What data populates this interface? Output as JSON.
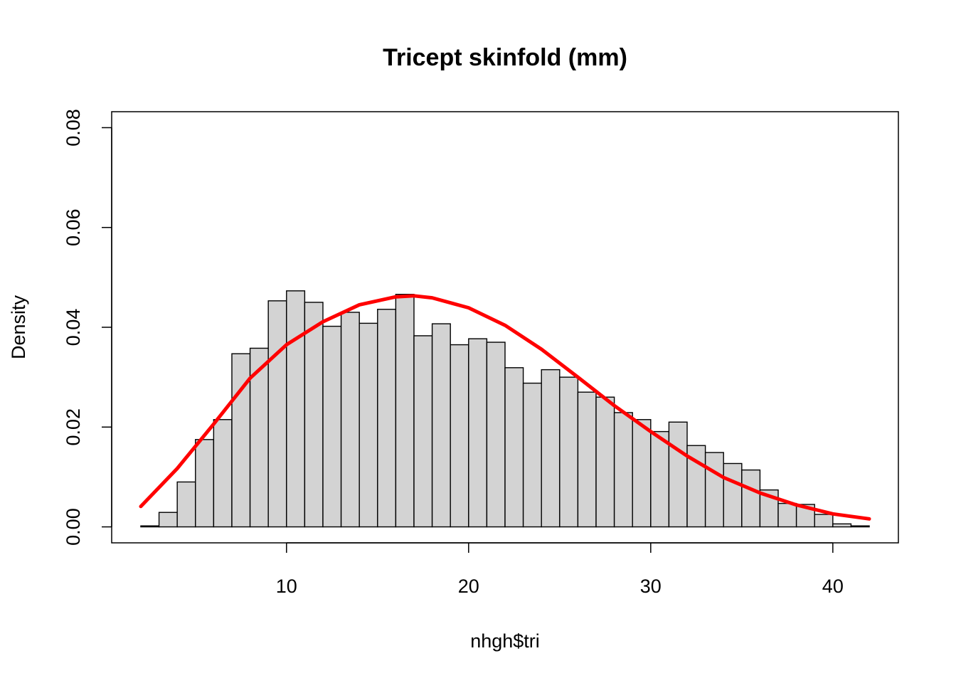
{
  "chart_data": {
    "type": "bar",
    "title": "Tricept skinfold (mm)",
    "xlabel": "nhgh$tri",
    "ylabel": "Density",
    "xlim": [
      0.4,
      43.6
    ],
    "ylim": [
      -0.0032,
      0.0832
    ],
    "x_ticks": [
      10,
      20,
      30,
      40
    ],
    "x_tick_labels": [
      "10",
      "20",
      "30",
      "40"
    ],
    "y_ticks": [
      0,
      0.02,
      0.04,
      0.06,
      0.08
    ],
    "y_tick_labels": [
      "0.00",
      "0.02",
      "0.04",
      "0.06",
      "0.08"
    ],
    "grid": false,
    "legend": "none",
    "bin_edges": [
      2,
      3,
      4,
      5,
      6,
      7,
      8,
      9,
      10,
      11,
      12,
      13,
      14,
      15,
      16,
      17,
      18,
      19,
      20,
      21,
      22,
      23,
      24,
      25,
      26,
      27,
      28,
      29,
      30,
      31,
      32,
      33,
      34,
      35,
      36,
      37,
      38,
      39,
      40,
      41,
      42
    ],
    "values": [
      0.0002,
      0.0029,
      0.009,
      0.0175,
      0.0215,
      0.0347,
      0.0358,
      0.0453,
      0.0473,
      0.045,
      0.0402,
      0.043,
      0.0408,
      0.0436,
      0.0466,
      0.0383,
      0.0407,
      0.0365,
      0.0377,
      0.037,
      0.0319,
      0.0288,
      0.0315,
      0.03,
      0.027,
      0.026,
      0.0229,
      0.0215,
      0.0191,
      0.021,
      0.0163,
      0.0149,
      0.0127,
      0.0114,
      0.0074,
      0.0047,
      0.0045,
      0.0025,
      0.0006,
      0.0002
    ],
    "curve": {
      "color": "#ff0000",
      "x": [
        2,
        4,
        6,
        8,
        10,
        12,
        14,
        16,
        17,
        18,
        20,
        22,
        24,
        26,
        28,
        30,
        32,
        34,
        36,
        38,
        40,
        42
      ],
      "y": [
        0.0041,
        0.0117,
        0.0206,
        0.0298,
        0.0365,
        0.0411,
        0.0445,
        0.0461,
        0.0463,
        0.0459,
        0.0439,
        0.0404,
        0.0356,
        0.03,
        0.0243,
        0.0191,
        0.0142,
        0.0099,
        0.0068,
        0.0044,
        0.0026,
        0.0016
      ]
    },
    "bar_fill": "#d3d3d3",
    "bar_stroke": "#000000"
  }
}
